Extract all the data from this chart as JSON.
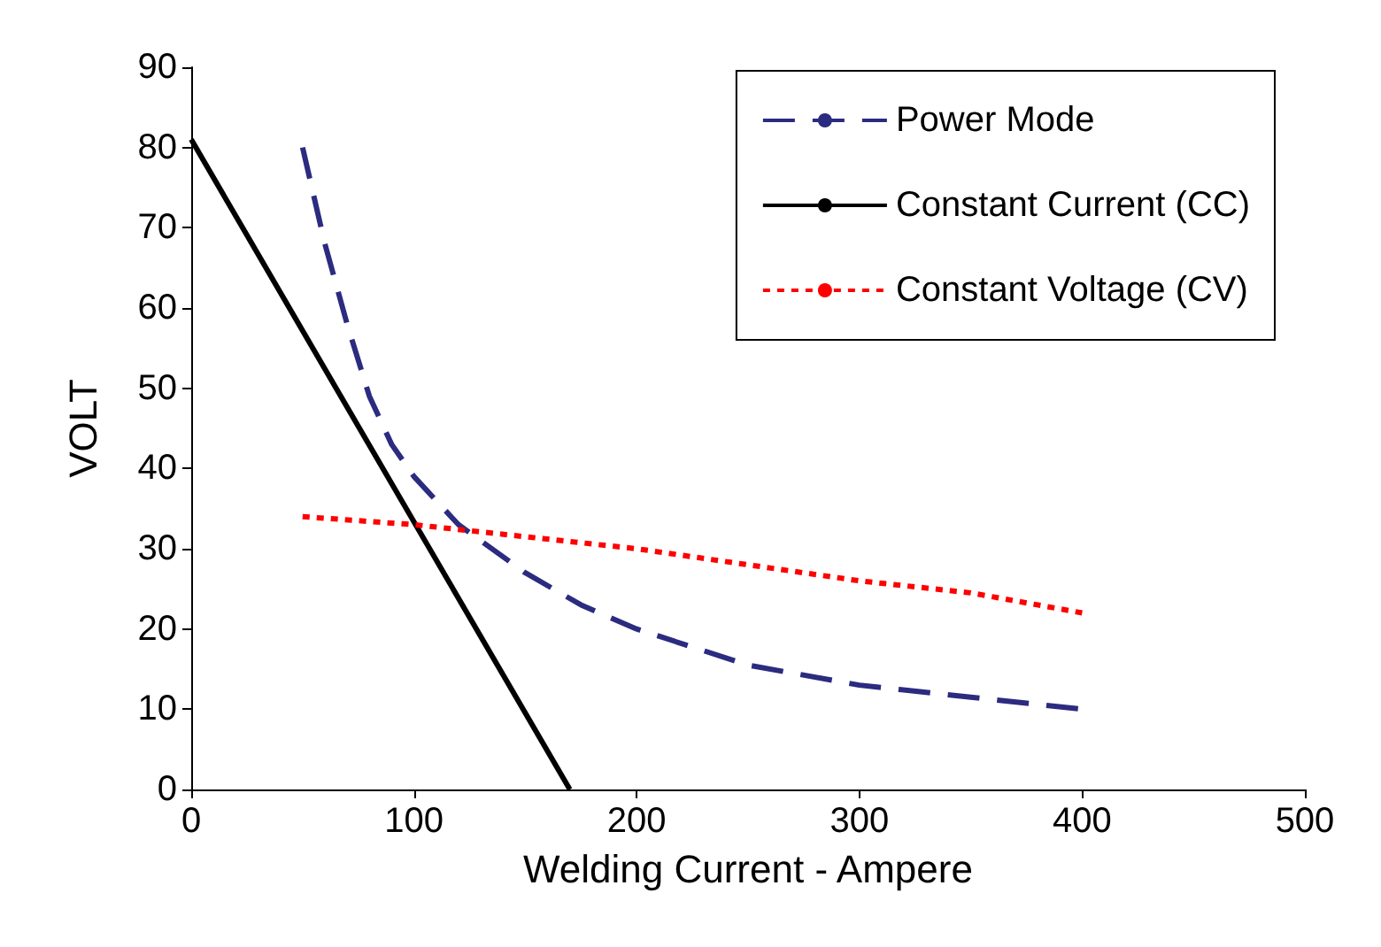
{
  "chart_data": {
    "type": "line",
    "xlabel": "Welding Current - Ampere",
    "ylabel": "VOLT",
    "xlim": [
      0,
      500
    ],
    "xticks": [
      0,
      100,
      200,
      300,
      400,
      500
    ],
    "ylim": [
      0,
      90
    ],
    "yticks": [
      0,
      10,
      20,
      30,
      40,
      50,
      60,
      70,
      80,
      90
    ],
    "grid": false,
    "legend": "top right",
    "marker": "none",
    "series": [
      {
        "name": "Power Mode",
        "color": "#2b2b80",
        "line_style": "dashed",
        "x": [
          50,
          60,
          70,
          80,
          90,
          100,
          120,
          150,
          175,
          200,
          250,
          300,
          350,
          400
        ],
        "values": [
          80,
          68,
          58,
          49,
          43,
          39,
          33,
          27,
          23,
          20,
          15.5,
          13,
          11.5,
          10
        ]
      },
      {
        "name": "Constant Current (CC)",
        "color": "#000000",
        "line_style": "solid",
        "x": [
          0,
          170
        ],
        "values": [
          81,
          0
        ]
      },
      {
        "name": "Constant Voltage (CV)",
        "color": "#ff0000",
        "line_style": "dotted",
        "x": [
          50,
          100,
          150,
          200,
          250,
          300,
          350,
          400
        ],
        "values": [
          34,
          33,
          31.5,
          30,
          28,
          26,
          24.5,
          22
        ]
      }
    ]
  }
}
